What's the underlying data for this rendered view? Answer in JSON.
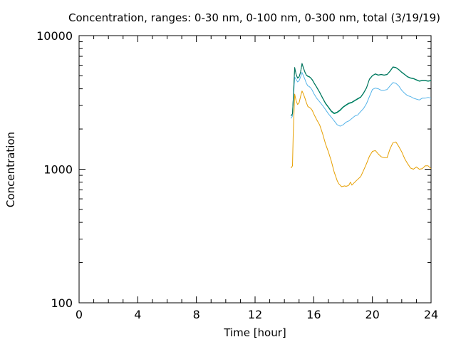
{
  "chart_data": {
    "type": "line",
    "title": "Concentration, ranges: 0-30 nm, 0-100 nm, 0-300 nm, total (3/19/19)",
    "xlabel": "Time [hour]",
    "ylabel": "Concentration",
    "xlim": [
      0,
      24
    ],
    "ylim": [
      100,
      10000
    ],
    "yscale": "log",
    "grid": false,
    "x_ticks": [
      0,
      4,
      8,
      12,
      16,
      20,
      24
    ],
    "x_tick_labels": [
      "0",
      "4",
      "8",
      "12",
      "16",
      "20",
      "24"
    ],
    "y_ticks": [
      100,
      1000,
      10000
    ],
    "y_tick_labels": [
      "100",
      "1000",
      "10000"
    ],
    "series": [
      {
        "color": "#e69f00",
        "x": [
          14.45,
          14.55,
          14.6,
          14.7,
          14.8,
          14.9,
          15.0,
          15.1,
          15.2,
          15.3,
          15.4,
          15.5,
          15.6,
          15.7,
          15.8,
          15.9,
          16.0,
          16.2,
          16.4,
          16.6,
          16.8,
          17.0,
          17.2,
          17.4,
          17.6,
          17.7,
          17.8,
          17.9,
          18.0,
          18.1,
          18.2,
          18.3,
          18.4,
          18.5,
          18.6,
          18.7,
          18.8,
          18.9,
          19.0,
          19.2,
          19.4,
          19.6,
          19.8,
          20.0,
          20.2,
          20.4,
          20.6,
          20.8,
          21.0,
          21.2,
          21.4,
          21.6,
          21.8,
          22.0,
          22.2,
          22.4,
          22.6,
          22.8,
          23.0,
          23.2,
          23.4,
          23.6,
          23.8,
          24.0
        ],
        "y": [
          1020,
          1060,
          1800,
          3650,
          3250,
          3050,
          3150,
          3500,
          3850,
          3650,
          3400,
          3150,
          2950,
          2900,
          2850,
          2750,
          2600,
          2350,
          2150,
          1850,
          1550,
          1350,
          1150,
          950,
          820,
          780,
          760,
          740,
          745,
          750,
          745,
          750,
          760,
          800,
          760,
          780,
          800,
          820,
          840,
          880,
          980,
          1100,
          1250,
          1360,
          1380,
          1300,
          1240,
          1220,
          1220,
          1420,
          1580,
          1600,
          1480,
          1350,
          1200,
          1100,
          1020,
          1000,
          1040,
          1000,
          1010,
          1060,
          1060,
          1010
        ]
      },
      {
        "color": "#56b4e9",
        "x": [
          14.45,
          14.55,
          14.6,
          14.7,
          14.8,
          14.9,
          15.0,
          15.1,
          15.2,
          15.3,
          15.4,
          15.5,
          15.6,
          15.7,
          15.8,
          15.9,
          16.0,
          16.2,
          16.4,
          16.6,
          16.8,
          17.0,
          17.2,
          17.4,
          17.6,
          17.8,
          18.0,
          18.2,
          18.4,
          18.6,
          18.8,
          19.0,
          19.2,
          19.4,
          19.6,
          19.8,
          20.0,
          20.2,
          20.4,
          20.6,
          20.8,
          21.0,
          21.2,
          21.4,
          21.6,
          21.8,
          22.0,
          22.2,
          22.4,
          22.6,
          22.8,
          23.0,
          23.2,
          23.4,
          23.6,
          23.8,
          24.0
        ],
        "y": [
          2400,
          2500,
          3200,
          4900,
          4700,
          4500,
          4600,
          4900,
          5300,
          5000,
          4700,
          4400,
          4200,
          4150,
          4050,
          3900,
          3700,
          3400,
          3200,
          3000,
          2800,
          2600,
          2450,
          2300,
          2150,
          2100,
          2150,
          2250,
          2300,
          2400,
          2500,
          2550,
          2700,
          2850,
          3100,
          3500,
          3950,
          4050,
          4000,
          3900,
          3900,
          3950,
          4200,
          4450,
          4400,
          4200,
          3900,
          3700,
          3550,
          3500,
          3400,
          3350,
          3300,
          3400,
          3400,
          3450,
          3400
        ]
      },
      {
        "color": "#009e73",
        "x": [
          14.45,
          14.55,
          14.6,
          14.7,
          14.8,
          14.9,
          15.0,
          15.1,
          15.2,
          15.3,
          15.4,
          15.5,
          15.6,
          15.7,
          15.8,
          15.9,
          16.0,
          16.2,
          16.4,
          16.6,
          16.8,
          17.0,
          17.2,
          17.4,
          17.6,
          17.8,
          18.0,
          18.2,
          18.4,
          18.6,
          18.8,
          19.0,
          19.2,
          19.4,
          19.6,
          19.8,
          20.0,
          20.2,
          20.4,
          20.6,
          20.8,
          21.0,
          21.2,
          21.4,
          21.6,
          21.8,
          22.0,
          22.2,
          22.4,
          22.6,
          22.8,
          23.0,
          23.2,
          23.4,
          23.6,
          23.8,
          24.0
        ],
        "y": [
          2500,
          2600,
          3300,
          5750,
          5100,
          4800,
          4900,
          5300,
          6150,
          5700,
          5300,
          5050,
          4950,
          4900,
          4800,
          4650,
          4450,
          4100,
          3750,
          3400,
          3100,
          2900,
          2700,
          2600,
          2650,
          2750,
          2900,
          3000,
          3100,
          3150,
          3250,
          3350,
          3450,
          3700,
          4050,
          4700,
          5000,
          5150,
          5050,
          5100,
          5050,
          5100,
          5400,
          5800,
          5750,
          5550,
          5300,
          5100,
          4900,
          4800,
          4750,
          4650,
          4550,
          4600,
          4600,
          4550,
          4600
        ]
      },
      {
        "color": "#006e5a",
        "x": [
          14.45,
          14.55,
          14.6,
          14.7,
          14.8,
          14.9,
          15.0,
          15.1,
          15.2,
          15.3,
          15.4,
          15.5,
          15.6,
          15.7,
          15.8,
          15.9,
          16.0,
          16.2,
          16.4,
          16.6,
          16.8,
          17.0,
          17.2,
          17.4,
          17.6,
          17.8,
          18.0,
          18.2,
          18.4,
          18.6,
          18.8,
          19.0,
          19.2,
          19.4,
          19.6,
          19.8,
          20.0,
          20.2,
          20.4,
          20.6,
          20.8,
          21.0,
          21.2,
          21.4,
          21.6,
          21.8,
          22.0,
          22.2,
          22.4,
          22.6,
          22.8,
          23.0,
          23.2,
          23.4,
          23.6,
          23.8,
          24.0
        ],
        "y": [
          2510,
          2610,
          3320,
          5780,
          5130,
          4830,
          4930,
          5330,
          6200,
          5740,
          5340,
          5080,
          4980,
          4930,
          4830,
          4680,
          4480,
          4130,
          3780,
          3430,
          3130,
          2930,
          2730,
          2630,
          2680,
          2780,
          2930,
          3030,
          3130,
          3180,
          3280,
          3380,
          3480,
          3730,
          4080,
          4730,
          5030,
          5180,
          5080,
          5130,
          5080,
          5130,
          5430,
          5830,
          5780,
          5580,
          5330,
          5130,
          4930,
          4830,
          4780,
          4680,
          4580,
          4630,
          4630,
          4580,
          4630
        ]
      }
    ]
  }
}
